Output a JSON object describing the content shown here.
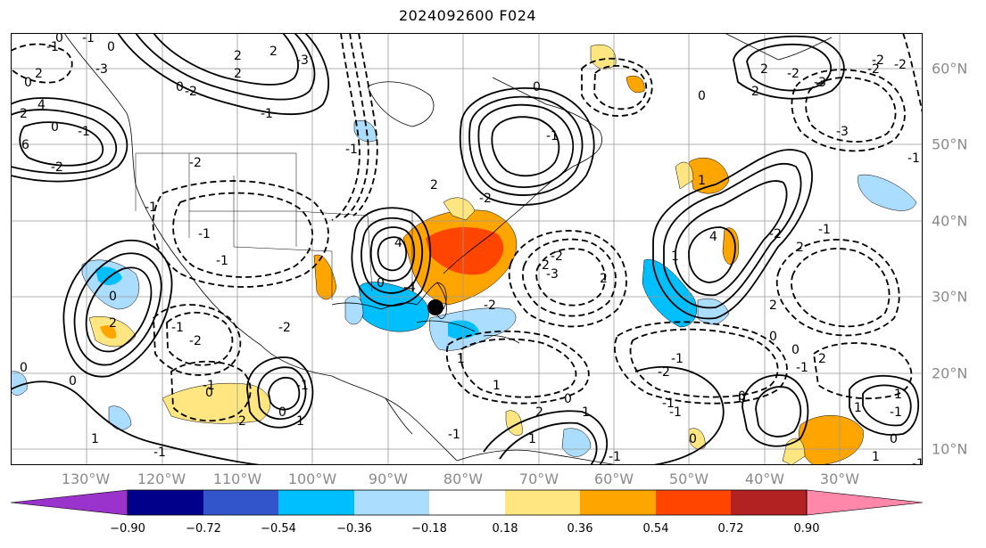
{
  "title": "2024092600 F024",
  "lon_labels": [
    "130°W",
    "120°W",
    "110°W",
    "100°W",
    "90°W",
    "80°W",
    "70°W",
    "60°W",
    "50°W",
    "40°W",
    "30°W"
  ],
  "lat_labels": [
    "60°N",
    "50°N",
    "40°N",
    "30°N",
    "20°N",
    "10°N"
  ],
  "colorbar": {
    "colors": [
      "#9933cc",
      "#00008b",
      "#3355cc",
      "#00bfff",
      "#aaddff",
      "#ffffff",
      "#ffe680",
      "#ffa500",
      "#ff4500",
      "#b22222",
      "#ff88aa"
    ],
    "ticks": [
      "−0.90",
      "−0.72",
      "−0.54",
      "−0.36",
      "−0.18",
      "0.18",
      "0.36",
      "0.54",
      "0.72",
      "0.90"
    ]
  },
  "contour_labels": [
    "0",
    "-1",
    "2",
    "4",
    "6",
    "-2",
    "-3",
    "-2",
    "0",
    "-2",
    "2",
    "-3",
    "2",
    "-1",
    "4",
    "-4",
    "0",
    "-2",
    "2",
    "-2",
    "-3",
    "-2",
    "0",
    "-1",
    "-2",
    "-1",
    "0",
    "1",
    "2",
    "4",
    "1",
    "-1",
    "0",
    "-2",
    "-1",
    "2",
    "0",
    "-2",
    "-1",
    "0",
    "2",
    "-1",
    "1",
    "-1",
    "0",
    "-1",
    "1",
    "1",
    "0",
    "-1",
    "1",
    "1",
    "-1",
    "-2",
    "2",
    "-1",
    "2",
    "-2",
    "-3",
    "-2",
    "-2",
    "-1",
    "2",
    "-2",
    "-3",
    "-2",
    "2",
    "0",
    "0",
    "0",
    "1",
    "-1",
    "1",
    "-1",
    "1",
    "0",
    "-1",
    "0",
    "0",
    "2",
    "2",
    "-1",
    "-1",
    "2",
    "-1",
    "-1",
    "1",
    "0",
    "-1",
    "0",
    "2",
    "0",
    "-1",
    "0",
    "0",
    "-1"
  ],
  "storm_marker": "tropical-cyclone-position"
}
